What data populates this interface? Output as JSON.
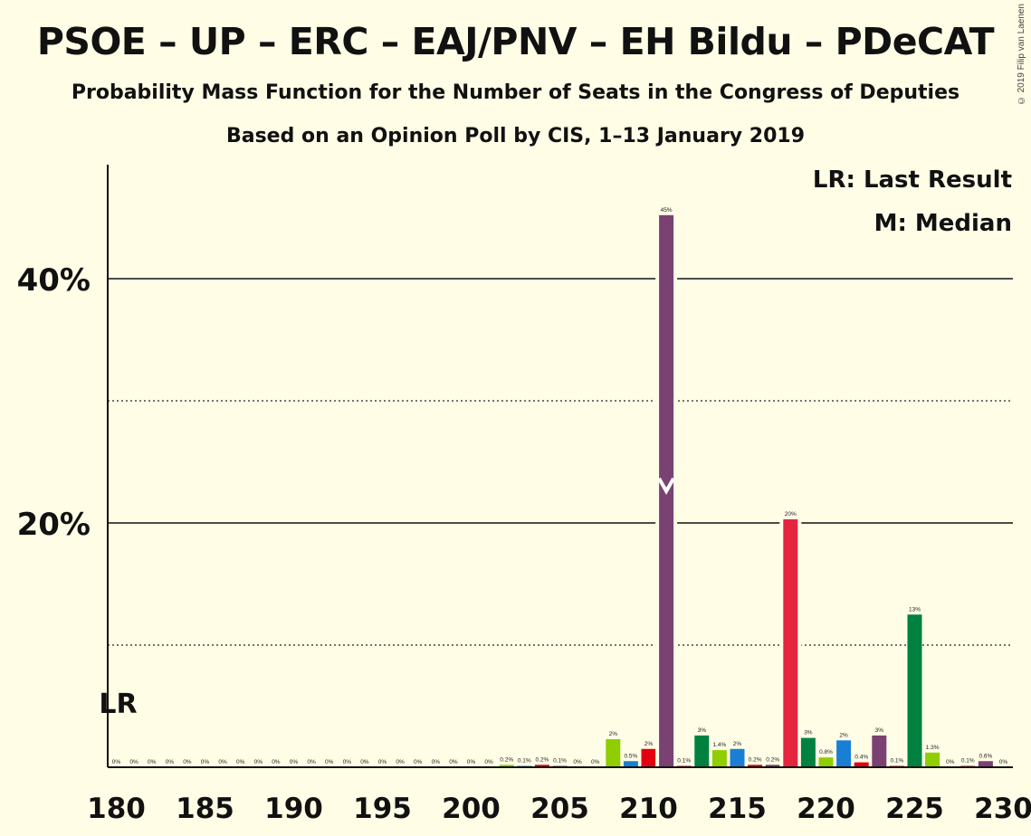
{
  "title": "PSOE – UP – ERC – EAJ/PNV – EH Bildu – PDeCAT",
  "subtitle": "Probability Mass Function for the Number of Seats in the Congress of Deputies",
  "subtitle2": "Based on an Opinion Poll by CIS, 1–13 January 2019",
  "copyright": "© 2019 Filip van Laenen",
  "legend": {
    "last_result": "LR: Last Result",
    "median": "M: Median"
  },
  "markers": {
    "last_result_label": "LR",
    "last_result_seats": 180,
    "median_label": "M",
    "median_seats": 211
  },
  "chart_data": {
    "type": "bar",
    "title": "PSOE – UP – ERC – EAJ/PNV – EH Bildu – PDeCAT",
    "xlabel": "",
    "ylabel": "",
    "xlim": [
      180,
      230
    ],
    "ylim": [
      0,
      49
    ],
    "x_ticks": [
      180,
      185,
      190,
      195,
      200,
      205,
      210,
      215,
      220,
      225,
      230
    ],
    "y_ticks_labeled": [
      {
        "value": 20,
        "label": "20%"
      },
      {
        "value": 40,
        "label": "40%"
      }
    ],
    "gridlines_solid": [
      20,
      40
    ],
    "gridlines_dotted": [
      10,
      30
    ],
    "legend_position": "top-right",
    "bars": [
      {
        "x": 180,
        "value": 0,
        "label": "0%",
        "color": "#7b4173"
      },
      {
        "x": 181,
        "value": 0,
        "label": "0%",
        "color": "#7b4173"
      },
      {
        "x": 182,
        "value": 0,
        "label": "0%",
        "color": "#7b4173"
      },
      {
        "x": 183,
        "value": 0,
        "label": "0%",
        "color": "#7b4173"
      },
      {
        "x": 184,
        "value": 0,
        "label": "0%",
        "color": "#7b4173"
      },
      {
        "x": 185,
        "value": 0,
        "label": "0%",
        "color": "#7b4173"
      },
      {
        "x": 186,
        "value": 0,
        "label": "0%",
        "color": "#7b4173"
      },
      {
        "x": 187,
        "value": 0,
        "label": "0%",
        "color": "#7b4173"
      },
      {
        "x": 188,
        "value": 0,
        "label": "0%",
        "color": "#7b4173"
      },
      {
        "x": 189,
        "value": 0,
        "label": "0%",
        "color": "#7b4173"
      },
      {
        "x": 190,
        "value": 0,
        "label": "0%",
        "color": "#7b4173"
      },
      {
        "x": 191,
        "value": 0,
        "label": "0%",
        "color": "#7b4173"
      },
      {
        "x": 192,
        "value": 0,
        "label": "0%",
        "color": "#7b4173"
      },
      {
        "x": 193,
        "value": 0,
        "label": "0%",
        "color": "#7b4173"
      },
      {
        "x": 194,
        "value": 0,
        "label": "0%",
        "color": "#7b4173"
      },
      {
        "x": 195,
        "value": 0,
        "label": "0%",
        "color": "#7b4173"
      },
      {
        "x": 196,
        "value": 0,
        "label": "0%",
        "color": "#7b4173"
      },
      {
        "x": 197,
        "value": 0,
        "label": "0%",
        "color": "#7b4173"
      },
      {
        "x": 198,
        "value": 0,
        "label": "0%",
        "color": "#7b4173"
      },
      {
        "x": 199,
        "value": 0,
        "label": "0%",
        "color": "#7b4173"
      },
      {
        "x": 200,
        "value": 0,
        "label": "0%",
        "color": "#7b4173"
      },
      {
        "x": 201,
        "value": 0,
        "label": "0%",
        "color": "#7b4173"
      },
      {
        "x": 202,
        "value": 0.2,
        "label": "0.2%",
        "color": "#8fce00"
      },
      {
        "x": 203,
        "value": 0.1,
        "label": "0.1%",
        "color": "#1a7fd4"
      },
      {
        "x": 204,
        "value": 0.2,
        "label": "0.2%",
        "color": "#e3000f"
      },
      {
        "x": 205,
        "value": 0.1,
        "label": "0.1%",
        "color": "#7b4173"
      },
      {
        "x": 206,
        "value": 0,
        "label": "0%",
        "color": "#7b4173"
      },
      {
        "x": 207,
        "value": 0,
        "label": "0%",
        "color": "#7b4173"
      },
      {
        "x": 208,
        "value": 2.3,
        "label": "2%",
        "color": "#8fce00"
      },
      {
        "x": 209,
        "value": 0.5,
        "label": "0.5%",
        "color": "#1a7fd4"
      },
      {
        "x": 210,
        "value": 1.5,
        "label": "2%",
        "color": "#e3000f"
      },
      {
        "x": 211,
        "value": 45.2,
        "label": "45%",
        "color": "#7b4173"
      },
      {
        "x": 212,
        "value": 0.1,
        "label": "0.1%",
        "color": "#e3000f"
      },
      {
        "x": 213,
        "value": 2.6,
        "label": "3%",
        "color": "#008140"
      },
      {
        "x": 214,
        "value": 1.4,
        "label": "1.4%",
        "color": "#8fce00"
      },
      {
        "x": 215,
        "value": 1.5,
        "label": "2%",
        "color": "#1a7fd4"
      },
      {
        "x": 216,
        "value": 0.2,
        "label": "0.2%",
        "color": "#e3000f"
      },
      {
        "x": 217,
        "value": 0.2,
        "label": "0.2%",
        "color": "#7b4173"
      },
      {
        "x": 218,
        "value": 20.3,
        "label": "20%",
        "color": "#e5243e"
      },
      {
        "x": 219,
        "value": 2.4,
        "label": "3%",
        "color": "#008140"
      },
      {
        "x": 220,
        "value": 0.8,
        "label": "0.8%",
        "color": "#8fce00"
      },
      {
        "x": 221,
        "value": 2.2,
        "label": "2%",
        "color": "#1a7fd4"
      },
      {
        "x": 222,
        "value": 0.4,
        "label": "0.4%",
        "color": "#e3000f"
      },
      {
        "x": 223,
        "value": 2.6,
        "label": "3%",
        "color": "#7b4173"
      },
      {
        "x": 224,
        "value": 0.1,
        "label": "0.1%",
        "color": "#e3000f"
      },
      {
        "x": 225,
        "value": 12.5,
        "label": "13%",
        "color": "#008140"
      },
      {
        "x": 226,
        "value": 1.2,
        "label": "1.3%",
        "color": "#8fce00"
      },
      {
        "x": 227,
        "value": 0,
        "label": "0%",
        "color": "#1a7fd4"
      },
      {
        "x": 228,
        "value": 0.1,
        "label": "0.1%",
        "color": "#e3000f"
      },
      {
        "x": 229,
        "value": 0.5,
        "label": "0.6%",
        "color": "#7b4173"
      },
      {
        "x": 230,
        "value": 0,
        "label": "0%",
        "color": "#7b4173"
      }
    ]
  }
}
